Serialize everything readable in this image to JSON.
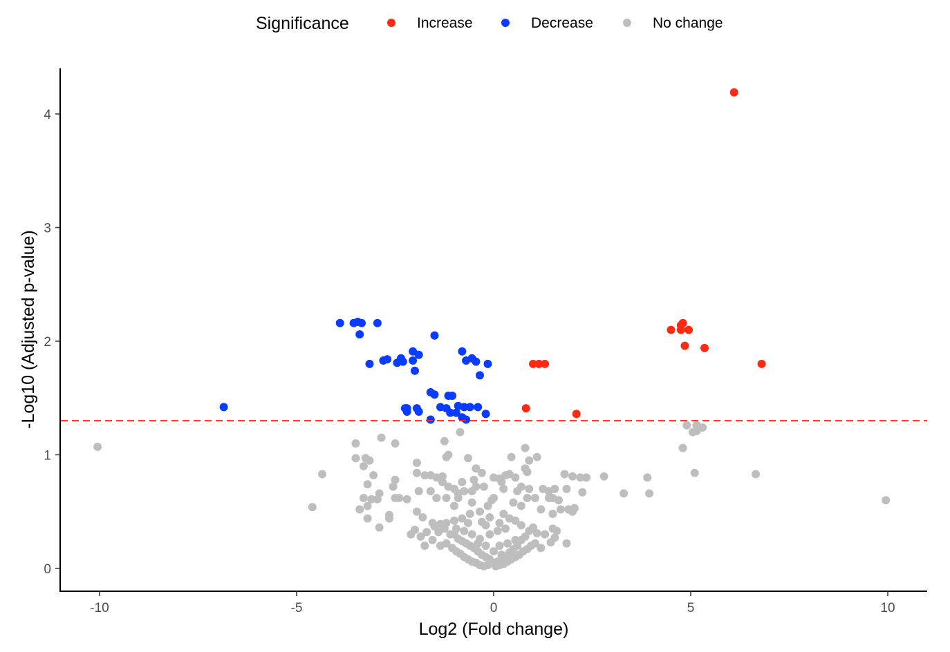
{
  "chart_data": {
    "type": "scatter",
    "title": "",
    "xlabel": "Log2 (Fold change)",
    "ylabel": "-Log10 (Adjusted p-value)",
    "xlim": [
      -11,
      11
    ],
    "ylim": [
      -0.2,
      4.4
    ],
    "x_ticks": [
      -10,
      -5,
      0,
      5,
      10
    ],
    "x_tick_labels": [
      "-10",
      "-5",
      "0",
      "5",
      "10"
    ],
    "y_ticks": [
      0,
      1,
      2,
      3,
      4
    ],
    "y_tick_labels": [
      "0",
      "1",
      "2",
      "3",
      "4"
    ],
    "grid": false,
    "threshold": {
      "y": 1.3,
      "color": "#ff2a14",
      "style": "dashed"
    },
    "legend": {
      "title": "Significance",
      "position": "top",
      "entries": [
        {
          "label": "Increase",
          "color": "#ff2a14"
        },
        {
          "label": "Decrease",
          "color": "#0a3cff"
        },
        {
          "label": "No change",
          "color": "#bebebe"
        }
      ]
    },
    "series": [
      {
        "name": "Increase",
        "color": "#ff2a14",
        "points": [
          [
            6.1,
            4.19
          ],
          [
            4.5,
            2.1
          ],
          [
            4.75,
            2.1
          ],
          [
            4.8,
            2.16
          ],
          [
            4.75,
            2.14
          ],
          [
            4.95,
            2.1
          ],
          [
            4.85,
            1.96
          ],
          [
            5.35,
            1.94
          ],
          [
            6.8,
            1.8
          ],
          [
            1.0,
            1.8
          ],
          [
            1.15,
            1.8
          ],
          [
            1.3,
            1.8
          ],
          [
            0.82,
            1.41
          ],
          [
            2.1,
            1.36
          ]
        ]
      },
      {
        "name": "Decrease",
        "color": "#0a3cff",
        "points": [
          [
            -6.85,
            1.42
          ],
          [
            -3.9,
            2.16
          ],
          [
            -3.55,
            2.16
          ],
          [
            -3.45,
            2.17
          ],
          [
            -3.35,
            2.16
          ],
          [
            -2.95,
            2.16
          ],
          [
            -3.4,
            2.06
          ],
          [
            -1.5,
            2.05
          ],
          [
            -3.15,
            1.8
          ],
          [
            -2.8,
            1.83
          ],
          [
            -2.7,
            1.84
          ],
          [
            -2.45,
            1.81
          ],
          [
            -2.35,
            1.85
          ],
          [
            -2.3,
            1.82
          ],
          [
            -2.05,
            1.91
          ],
          [
            -2.05,
            1.83
          ],
          [
            -1.9,
            1.88
          ],
          [
            -2.0,
            1.74
          ],
          [
            -0.8,
            1.91
          ],
          [
            -0.7,
            1.83
          ],
          [
            -0.55,
            1.85
          ],
          [
            -0.45,
            1.82
          ],
          [
            -0.15,
            1.8
          ],
          [
            -0.35,
            1.7
          ],
          [
            -1.6,
            1.55
          ],
          [
            -1.5,
            1.53
          ],
          [
            -1.15,
            1.52
          ],
          [
            -1.05,
            1.52
          ],
          [
            -2.25,
            1.41
          ],
          [
            -2.2,
            1.41
          ],
          [
            -2.2,
            1.38
          ],
          [
            -1.95,
            1.41
          ],
          [
            -1.9,
            1.38
          ],
          [
            -1.35,
            1.42
          ],
          [
            -1.2,
            1.41
          ],
          [
            -1.1,
            1.37
          ],
          [
            -0.95,
            1.37
          ],
          [
            -0.9,
            1.43
          ],
          [
            -0.75,
            1.42
          ],
          [
            -0.6,
            1.42
          ],
          [
            -0.4,
            1.42
          ],
          [
            -0.2,
            1.36
          ],
          [
            -0.8,
            1.33
          ],
          [
            -0.7,
            1.31
          ],
          [
            -1.6,
            1.31
          ]
        ]
      },
      {
        "name": "No change",
        "color": "#bebebe",
        "points": [
          [
            -10.05,
            1.07
          ],
          [
            -4.35,
            0.83
          ],
          [
            -4.6,
            0.54
          ],
          [
            9.95,
            0.6
          ],
          [
            6.65,
            0.83
          ],
          [
            5.15,
            1.26
          ],
          [
            5.3,
            1.24
          ],
          [
            4.9,
            1.26
          ],
          [
            5.05,
            1.2
          ],
          [
            5.15,
            1.21
          ],
          [
            4.8,
            1.06
          ],
          [
            5.1,
            0.84
          ],
          [
            3.9,
            0.8
          ],
          [
            3.95,
            0.66
          ],
          [
            3.3,
            0.66
          ],
          [
            2.8,
            0.81
          ],
          [
            2.35,
            0.8
          ],
          [
            2.2,
            0.8
          ],
          [
            2.0,
            0.81
          ],
          [
            1.8,
            0.83
          ],
          [
            1.85,
            0.7
          ],
          [
            2.25,
            0.67
          ],
          [
            -3.5,
            1.1
          ],
          [
            -2.85,
            1.15
          ],
          [
            -2.5,
            1.1
          ],
          [
            -3.5,
            0.97
          ],
          [
            -3.25,
            0.97
          ],
          [
            -3.15,
            0.95
          ],
          [
            -3.3,
            0.9
          ],
          [
            -3.05,
            0.82
          ],
          [
            -1.95,
            0.93
          ],
          [
            -1.25,
            1.12
          ],
          [
            -1.15,
            1.0
          ],
          [
            -1.2,
            0.98
          ],
          [
            -0.65,
            0.97
          ],
          [
            -0.85,
            1.2
          ],
          [
            0.8,
            1.06
          ],
          [
            0.45,
            0.98
          ],
          [
            1.1,
            0.98
          ],
          [
            0.9,
            0.95
          ],
          [
            0.8,
            0.88
          ],
          [
            0.85,
            0.85
          ],
          [
            -3.3,
            0.62
          ],
          [
            -3.1,
            0.61
          ],
          [
            -2.95,
            0.61
          ],
          [
            -3.2,
            0.55
          ],
          [
            -2.5,
            0.62
          ],
          [
            -2.2,
            0.61
          ],
          [
            -3.4,
            0.52
          ],
          [
            -3.2,
            0.44
          ],
          [
            -2.65,
            0.44
          ],
          [
            -2.65,
            0.47
          ],
          [
            -2.9,
            0.36
          ],
          [
            -1.95,
            0.5
          ],
          [
            -1.8,
            0.45
          ],
          [
            -1.9,
            0.68
          ],
          [
            -1.6,
            0.68
          ],
          [
            -1.45,
            0.62
          ],
          [
            -1.2,
            0.62
          ],
          [
            -0.9,
            0.62
          ],
          [
            -1.0,
            0.55
          ],
          [
            -0.55,
            0.58
          ],
          [
            -0.35,
            0.5
          ],
          [
            -0.3,
            0.41
          ],
          [
            -1.55,
            0.4
          ],
          [
            -1.85,
            0.28
          ],
          [
            -2.0,
            0.34
          ],
          [
            -1.7,
            0.32
          ],
          [
            -1.5,
            0.37
          ],
          [
            -1.35,
            0.39
          ],
          [
            -1.4,
            0.32
          ],
          [
            -1.25,
            0.35
          ],
          [
            -1.1,
            0.3
          ],
          [
            -1.0,
            0.3
          ],
          [
            -0.9,
            0.26
          ],
          [
            -0.8,
            0.24
          ],
          [
            -0.7,
            0.22
          ],
          [
            -0.6,
            0.2
          ],
          [
            -0.5,
            0.18
          ],
          [
            -0.4,
            0.15
          ],
          [
            -0.3,
            0.12
          ],
          [
            -0.2,
            0.1
          ],
          [
            -0.1,
            0.08
          ],
          [
            0.0,
            0.05
          ],
          [
            0.1,
            0.06
          ],
          [
            0.2,
            0.08
          ],
          [
            0.3,
            0.1
          ],
          [
            0.4,
            0.14
          ],
          [
            0.5,
            0.17
          ],
          [
            0.6,
            0.2
          ],
          [
            0.7,
            0.25
          ],
          [
            0.8,
            0.28
          ],
          [
            0.9,
            0.33
          ],
          [
            1.0,
            0.36
          ],
          [
            1.1,
            0.31
          ],
          [
            1.3,
            0.3
          ],
          [
            1.45,
            0.23
          ],
          [
            1.5,
            0.35
          ],
          [
            1.6,
            0.33
          ],
          [
            1.55,
            0.27
          ],
          [
            1.85,
            0.22
          ],
          [
            0.55,
            0.42
          ],
          [
            0.7,
            0.38
          ],
          [
            0.4,
            0.44
          ],
          [
            0.25,
            0.48
          ],
          [
            0.5,
            0.58
          ],
          [
            0.7,
            0.55
          ],
          [
            0.85,
            0.62
          ],
          [
            1.05,
            0.62
          ],
          [
            1.2,
            0.52
          ],
          [
            1.4,
            0.62
          ],
          [
            1.5,
            0.62
          ],
          [
            1.65,
            0.6
          ],
          [
            1.7,
            0.52
          ],
          [
            1.9,
            0.52
          ],
          [
            2.0,
            0.5
          ],
          [
            2.05,
            0.53
          ],
          [
            1.5,
            0.48
          ],
          [
            0.25,
            0.7
          ],
          [
            0.6,
            0.68
          ],
          [
            0.7,
            0.72
          ],
          [
            0.9,
            0.7
          ],
          [
            1.25,
            0.7
          ],
          [
            1.4,
            0.68
          ],
          [
            1.55,
            0.7
          ],
          [
            0.3,
            0.82
          ],
          [
            0.4,
            0.83
          ],
          [
            0.55,
            0.8
          ],
          [
            0.15,
            0.79
          ],
          [
            0.0,
            0.8
          ],
          [
            0.2,
            0.76
          ],
          [
            -0.25,
            0.72
          ],
          [
            -0.45,
            0.72
          ],
          [
            -0.55,
            0.68
          ],
          [
            -0.75,
            0.68
          ],
          [
            -0.9,
            0.66
          ],
          [
            -1.0,
            0.7
          ],
          [
            -1.15,
            0.72
          ],
          [
            -1.3,
            0.76
          ],
          [
            -1.45,
            0.8
          ],
          [
            -1.6,
            0.82
          ],
          [
            -1.75,
            0.82
          ],
          [
            -1.3,
            0.81
          ],
          [
            -0.8,
            0.76
          ],
          [
            -0.5,
            0.78
          ],
          [
            -0.3,
            0.84
          ],
          [
            -0.45,
            0.88
          ],
          [
            -1.95,
            0.84
          ],
          [
            -2.5,
            0.78
          ],
          [
            -2.55,
            0.72
          ],
          [
            -2.9,
            0.66
          ],
          [
            -2.4,
            0.62
          ],
          [
            -3.2,
            0.74
          ],
          [
            0.0,
            0.62
          ],
          [
            -0.15,
            0.55
          ],
          [
            -0.1,
            0.45
          ],
          [
            0.15,
            0.4
          ],
          [
            -0.65,
            0.4
          ],
          [
            -0.6,
            0.48
          ],
          [
            -0.8,
            0.44
          ],
          [
            -1.0,
            0.42
          ],
          [
            -1.2,
            0.4
          ],
          [
            -1.55,
            0.25
          ],
          [
            -1.35,
            0.2
          ],
          [
            -1.2,
            0.22
          ],
          [
            -1.05,
            0.18
          ],
          [
            -0.95,
            0.15
          ],
          [
            -0.85,
            0.13
          ],
          [
            -0.75,
            0.1
          ],
          [
            -0.65,
            0.08
          ],
          [
            -0.55,
            0.06
          ],
          [
            -0.45,
            0.05
          ],
          [
            -0.35,
            0.03
          ],
          [
            -0.25,
            0.02
          ],
          [
            -0.15,
            0.03
          ],
          [
            0.05,
            0.02
          ],
          [
            0.15,
            0.03
          ],
          [
            0.25,
            0.04
          ],
          [
            0.35,
            0.06
          ],
          [
            0.45,
            0.08
          ],
          [
            0.55,
            0.1
          ],
          [
            0.65,
            0.12
          ],
          [
            0.75,
            0.15
          ],
          [
            0.85,
            0.17
          ],
          [
            0.95,
            0.2
          ],
          [
            1.05,
            0.22
          ],
          [
            0.15,
            0.2
          ],
          [
            0.35,
            0.22
          ],
          [
            0.55,
            0.25
          ],
          [
            -0.35,
            0.26
          ],
          [
            -0.55,
            0.3
          ],
          [
            -0.75,
            0.33
          ],
          [
            -0.95,
            0.35
          ],
          [
            -0.1,
            0.3
          ],
          [
            0.1,
            0.33
          ],
          [
            0.3,
            0.35
          ],
          [
            -0.2,
            0.2
          ],
          [
            -0.4,
            0.22
          ],
          [
            0.0,
            0.15
          ],
          [
            0.2,
            0.12
          ],
          [
            -1.75,
            0.2
          ],
          [
            -2.1,
            0.3
          ],
          [
            1.2,
            0.18
          ],
          [
            -0.05,
            0.6
          ],
          [
            -0.2,
            0.38
          ]
        ]
      }
    ]
  }
}
